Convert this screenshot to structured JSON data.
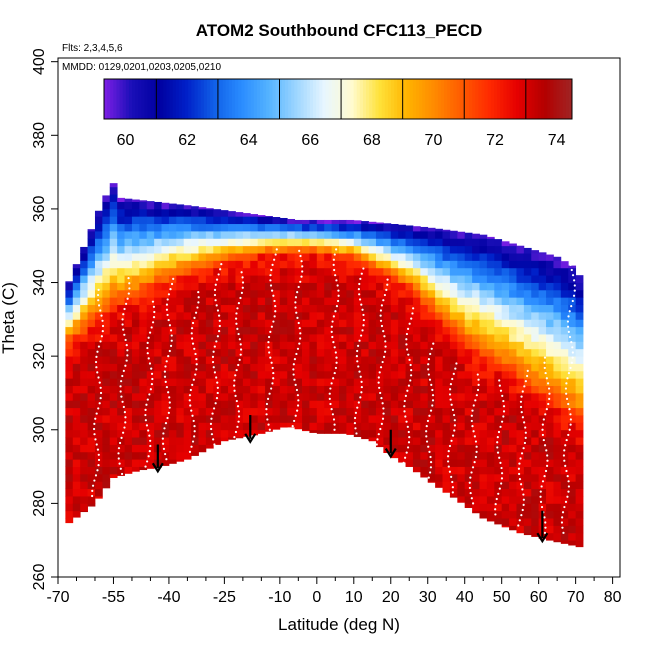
{
  "chart_data": {
    "type": "heatmap",
    "title": "ATOM2 Southbound CFC113_PECD",
    "notes": [
      "Flts: 2,3,4,5,6",
      "MMDD: 0129,0201,0203,0205,0210"
    ],
    "xlabel": "Latitude (deg N)",
    "ylabel": "Theta (C)",
    "xlim": [
      -70,
      82
    ],
    "ylim": [
      260,
      401
    ],
    "x_major_ticks": [
      -70,
      -55,
      -40,
      -25,
      -10,
      0,
      10,
      20,
      30,
      40,
      50,
      60,
      70,
      80
    ],
    "x_minor_ticks": [
      -65,
      -60,
      -50,
      -45,
      -35,
      -30,
      -20,
      -15,
      -5,
      5,
      15,
      25,
      35,
      45,
      55,
      65,
      75
    ],
    "y_ticks": [
      260,
      280,
      300,
      320,
      340,
      360,
      380,
      400
    ],
    "colorbar": {
      "min": 59.3,
      "max": 74.5,
      "ticks": [
        60,
        62,
        64,
        66,
        68,
        70,
        72,
        74
      ],
      "divisions": [
        61,
        63,
        65,
        67,
        69,
        71,
        73
      ],
      "colors": [
        "#7f1fe6",
        "#1a0fb8",
        "#0000a0",
        "#0020c8",
        "#1060e8",
        "#2a8cff",
        "#55b4ff",
        "#9ed6ff",
        "#e8f6ff",
        "#fffbd0",
        "#ffe23a",
        "#ffb400",
        "#ff8a00",
        "#ff5a00",
        "#ff2a00",
        "#e60000",
        "#b40000",
        "#a02424"
      ]
    },
    "field": {
      "lat_min": -68,
      "lat_max": 72,
      "upper_boundary": [
        [
          -68,
          338
        ],
        [
          -62,
          352
        ],
        [
          -58,
          362
        ],
        [
          -55,
          367
        ],
        [
          -53,
          363
        ],
        [
          -35,
          361
        ],
        [
          -20,
          359
        ],
        [
          -5,
          357
        ],
        [
          10,
          357
        ],
        [
          30,
          355
        ],
        [
          45,
          353
        ],
        [
          55,
          350
        ],
        [
          65,
          347
        ],
        [
          70,
          344
        ],
        [
          72,
          340
        ]
      ],
      "lower_boundary": [
        [
          -68,
          274
        ],
        [
          -60,
          280
        ],
        [
          -55,
          287
        ],
        [
          -48,
          289
        ],
        [
          -42,
          290
        ],
        [
          -35,
          292
        ],
        [
          -25,
          297
        ],
        [
          -15,
          299
        ],
        [
          -8,
          301
        ],
        [
          0,
          299
        ],
        [
          8,
          299
        ],
        [
          15,
          297
        ],
        [
          20,
          293
        ],
        [
          25,
          290
        ],
        [
          32,
          285
        ],
        [
          38,
          281
        ],
        [
          45,
          276
        ],
        [
          55,
          272
        ],
        [
          63,
          270
        ],
        [
          72,
          268
        ]
      ],
      "tropopause_theta": [
        [
          -68,
          322
        ],
        [
          -55,
          332
        ],
        [
          -40,
          340
        ],
        [
          -25,
          345
        ],
        [
          -10,
          348
        ],
        [
          0,
          348
        ],
        [
          10,
          346
        ],
        [
          25,
          338
        ],
        [
          40,
          322
        ],
        [
          55,
          312
        ],
        [
          65,
          305
        ],
        [
          72,
          300
        ]
      ],
      "mixing_values": {
        "stratosphere_top": 61.5,
        "transition": 68.0,
        "troposphere": 73.2
      }
    },
    "arrows": [
      {
        "lat": -43,
        "theta_top": 296,
        "theta_bottom": 289
      },
      {
        "lat": -18,
        "theta_top": 304,
        "theta_bottom": 297
      },
      {
        "lat": 20,
        "theta_top": 300,
        "theta_bottom": 293
      },
      {
        "lat": 61,
        "theta_top": 278,
        "theta_bottom": 270
      }
    ],
    "profiles": [
      {
        "lat": -60,
        "theta_top": 338,
        "theta_bottom": 282
      },
      {
        "lat": -53,
        "theta_top": 342,
        "theta_bottom": 288
      },
      {
        "lat": -46,
        "theta_top": 336,
        "theta_bottom": 290
      },
      {
        "lat": -41,
        "theta_top": 342,
        "theta_bottom": 292
      },
      {
        "lat": -34,
        "theta_top": 338,
        "theta_bottom": 294
      },
      {
        "lat": -28,
        "theta_top": 346,
        "theta_bottom": 296
      },
      {
        "lat": -22,
        "theta_top": 344,
        "theta_bottom": 298
      },
      {
        "lat": -13,
        "theta_top": 350,
        "theta_bottom": 300
      },
      {
        "lat": -6,
        "theta_top": 349,
        "theta_bottom": 301
      },
      {
        "lat": 4,
        "theta_top": 349,
        "theta_bottom": 300
      },
      {
        "lat": 11,
        "theta_top": 345,
        "theta_bottom": 299
      },
      {
        "lat": 17,
        "theta_top": 341,
        "theta_bottom": 296
      },
      {
        "lat": 24,
        "theta_top": 334,
        "theta_bottom": 291
      },
      {
        "lat": 30,
        "theta_top": 324,
        "theta_bottom": 287
      },
      {
        "lat": 36,
        "theta_top": 318,
        "theta_bottom": 283
      },
      {
        "lat": 42,
        "theta_top": 316,
        "theta_bottom": 280
      },
      {
        "lat": 49,
        "theta_top": 314,
        "theta_bottom": 277
      },
      {
        "lat": 55,
        "theta_top": 316,
        "theta_bottom": 274
      },
      {
        "lat": 61,
        "theta_top": 320,
        "theta_bottom": 272
      },
      {
        "lat": 67,
        "theta_top": 350,
        "theta_bottom": 272
      }
    ],
    "grid": false,
    "legend": "colorbar at top inside plot"
  }
}
